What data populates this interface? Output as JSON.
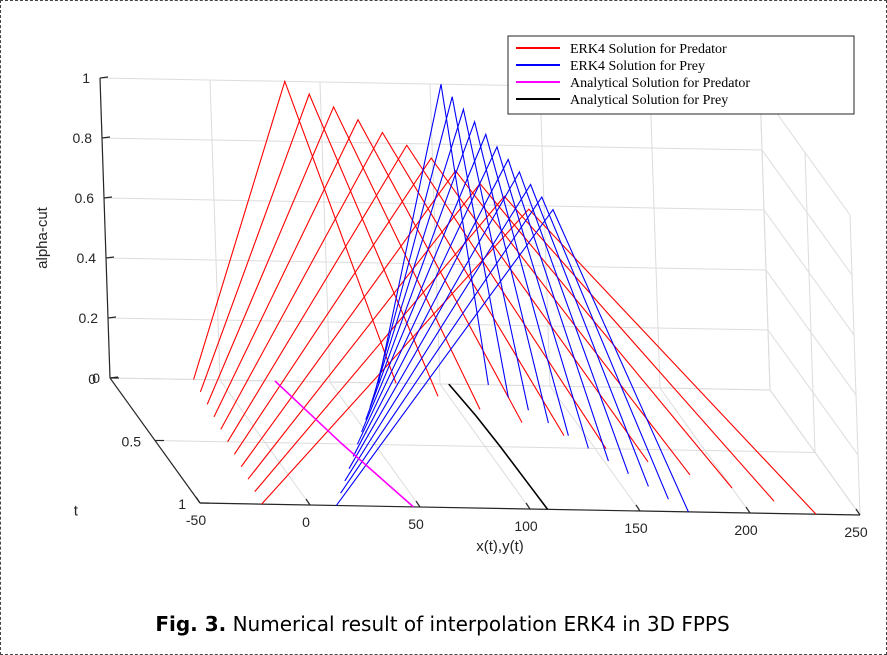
{
  "caption": {
    "label": "Fig. 3.",
    "text": "Numerical result of interpolation ERK4 in 3D FPPS"
  },
  "chart_data": {
    "type": "line",
    "projection": "3d",
    "xlabel": "x(t),y(t)",
    "ylabel": "t",
    "zlabel": "alpha-cut",
    "xlim": [
      -50,
      250
    ],
    "ylim": [
      0,
      1
    ],
    "zlim": [
      0,
      1
    ],
    "x_ticks": [
      "-50",
      "0",
      "50",
      "100",
      "150",
      "200",
      "250"
    ],
    "y_ticks": [
      "0",
      "0.5",
      "1"
    ],
    "z_ticks": [
      "0",
      "0.2",
      "0.4",
      "0.6",
      "0.8",
      "1"
    ],
    "grid": true,
    "legend_position": "top-right",
    "series": [
      {
        "name": "ERK4 Solution for Predator",
        "color": "#ff0000",
        "description_of_fuzzy_triangles": "alpha-cut triangles at t from 0 to 1",
        "t": [
          0.0,
          0.1,
          0.2,
          0.3,
          0.4,
          0.5,
          0.6,
          0.7,
          0.8,
          0.9,
          1.0
        ],
        "left_bound_alpha0": [
          -12,
          -13,
          -14,
          -15,
          -16,
          -17,
          -18,
          -19,
          -20,
          -21,
          -22
        ],
        "peak_alpha1": [
          34,
          41,
          48,
          55,
          62,
          69,
          76,
          83,
          90,
          97,
          104
        ],
        "right_bound_alpha0": [
          80,
          95,
          110,
          125,
          140,
          155,
          170,
          185,
          200,
          215,
          230
        ]
      },
      {
        "name": "ERK4 Solution for Prey",
        "color": "#0000ff",
        "t": [
          0.0,
          0.1,
          0.2,
          0.3,
          0.4,
          0.5,
          0.6,
          0.7,
          0.8,
          0.9,
          1.0
        ],
        "left_bound_alpha0": [
          72,
          66,
          60,
          54,
          48,
          42,
          36,
          30,
          24,
          18,
          12
        ],
        "peak_alpha1": [
          105,
          106,
          107,
          108,
          109,
          110,
          111,
          112,
          113,
          114,
          115
        ],
        "right_bound_alpha0": [
          122,
          127,
          132,
          137,
          142,
          147,
          152,
          157,
          162,
          167,
          172
        ]
      },
      {
        "name": "Analytical Solution for Predator",
        "color": "#ff00ff",
        "t": [
          0.0,
          0.25,
          0.5,
          0.75,
          1.0
        ],
        "x": [
          25,
          30,
          35,
          41,
          47
        ]
      },
      {
        "name": "Analytical Solution for Prey",
        "color": "#000000",
        "t": [
          0.0,
          0.25,
          0.5,
          0.75,
          1.0
        ],
        "x": [
          104,
          106,
          107,
          107.5,
          108
        ]
      }
    ]
  }
}
